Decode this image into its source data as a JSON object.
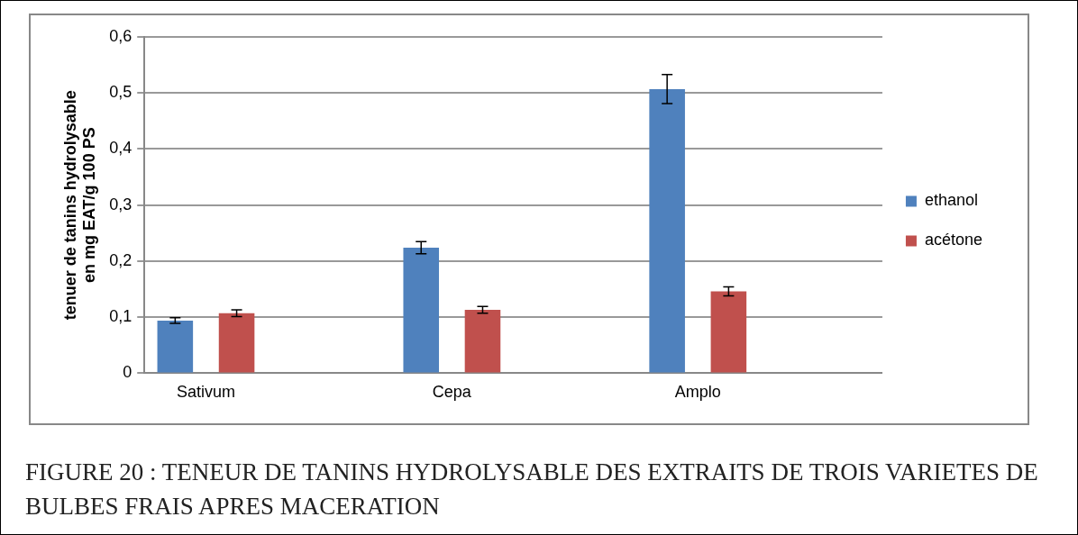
{
  "chart_data": {
    "type": "bar",
    "categories": [
      "Sativum",
      null,
      "Cepa",
      null,
      "Amplo",
      null
    ],
    "series": [
      {
        "name": "ethanol",
        "color": "#4f81bd",
        "values": [
          0.094,
          null,
          0.224,
          null,
          0.507,
          null
        ],
        "errors": [
          0.005,
          null,
          0.011,
          null,
          0.026,
          null
        ]
      },
      {
        "name": "acétone",
        "color": "#c0504d",
        "values": [
          0.107,
          null,
          0.113,
          null,
          0.146,
          null
        ],
        "errors": [
          0.006,
          null,
          0.006,
          null,
          0.008,
          null
        ]
      }
    ],
    "ylabel": "tenuer de tanins hydrolysable\nen mg EAT/g 100 PS",
    "ylim": [
      0,
      0.6
    ],
    "yticks": [
      0,
      {
        "value": 0.1,
        "label": "0,1"
      },
      {
        "value": 0.2,
        "label": "0,2"
      },
      {
        "value": 0.3,
        "label": "0,3"
      },
      {
        "value": 0.4,
        "label": "0,4"
      },
      {
        "value": 0.5,
        "label": "0,5"
      },
      {
        "value": 0.6,
        "label": "0,6"
      }
    ],
    "grid": "y",
    "legend": "right",
    "annotations": [
      "FIGURE 20 : TENEUR DE TANINS HYDROLYSABLE DES EXTRAITS DE TROIS VARIETES DE BULBES FRAIS APRES MACERATION"
    ]
  }
}
